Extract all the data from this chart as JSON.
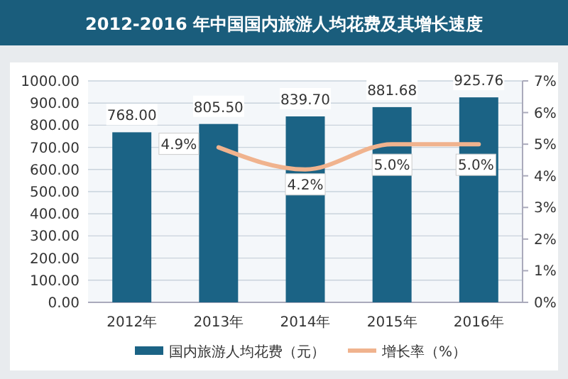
{
  "chart_data": {
    "type": "bar",
    "title": "2012-2016 年中国国内旅游人均花费及其增长速度",
    "categories": [
      "2012年",
      "2013年",
      "2014年",
      "2015年",
      "2016年"
    ],
    "series": [
      {
        "name": "国内旅游人均花费（元）",
        "color": "#1b6385",
        "values": [
          768.0,
          805.5,
          839.7,
          881.68,
          925.76
        ],
        "value_labels": [
          "768.00",
          "805.50",
          "839.70",
          "881.68",
          "925.76"
        ]
      },
      {
        "name": "增长率（%）",
        "type": "line",
        "axis": "y2",
        "color": "#f0b38e",
        "values": [
          null,
          4.9,
          4.2,
          5.0,
          5.0
        ],
        "value_labels": [
          null,
          "4.9%",
          "4.2%",
          "5.0%",
          "5.0%"
        ]
      }
    ],
    "ylim": [
      0,
      1000
    ],
    "yticks": [
      {
        "value": 0,
        "label": "0.00"
      },
      {
        "value": 100,
        "label": "100.00"
      },
      {
        "value": 200,
        "label": "200.00"
      },
      {
        "value": 300,
        "label": "300.00"
      },
      {
        "value": 400,
        "label": "400.00"
      },
      {
        "value": 500,
        "label": "500.00"
      },
      {
        "value": 600,
        "label": "600.00"
      },
      {
        "value": 700,
        "label": "700.00"
      },
      {
        "value": 800,
        "label": "800.00"
      },
      {
        "value": 900,
        "label": "900.00"
      },
      {
        "value": 1000,
        "label": "1000.00"
      }
    ],
    "y2lim": [
      0,
      7
    ],
    "y2ticks": [
      {
        "value": 0,
        "label": "0%"
      },
      {
        "value": 1,
        "label": "1%"
      },
      {
        "value": 2,
        "label": "2%"
      },
      {
        "value": 3,
        "label": "3%"
      },
      {
        "value": 4,
        "label": "4%"
      },
      {
        "value": 5,
        "label": "5%"
      },
      {
        "value": 6,
        "label": "6%"
      },
      {
        "value": 7,
        "label": "7%"
      }
    ],
    "grid": "y",
    "legend": "bottom",
    "marker": "none",
    "line_style": "solid"
  }
}
